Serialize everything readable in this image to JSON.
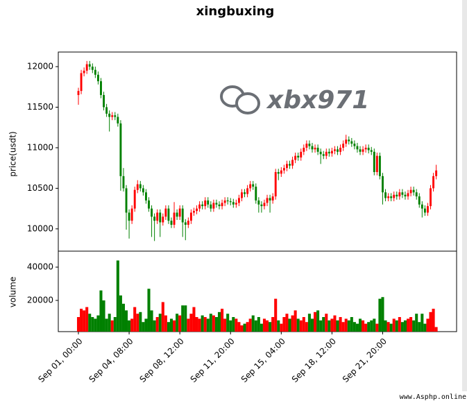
{
  "chart_data": {
    "type": "candlestick",
    "title": "xingbuxing",
    "ylabel": "price(usdt)",
    "volume_label": "volume",
    "annotations": [
      "xbx971",
      "www.Asphp.online"
    ],
    "up_color": "#ff0000",
    "down_color": "#008000",
    "categories": [
      "Sep 01, 00:00",
      null,
      null,
      null,
      null,
      null,
      null,
      null,
      null,
      null,
      null,
      null,
      null,
      null,
      null,
      null,
      null,
      null,
      "Sep 04, 08:00",
      null,
      null,
      null,
      null,
      null,
      null,
      null,
      null,
      null,
      null,
      null,
      null,
      null,
      null,
      null,
      null,
      null,
      "Sep 08, 12:00",
      null,
      null,
      null,
      null,
      null,
      null,
      null,
      null,
      null,
      null,
      null,
      null,
      null,
      null,
      null,
      null,
      null,
      "Sep 11, 20:00",
      null,
      null,
      null,
      null,
      null,
      null,
      null,
      null,
      null,
      null,
      null,
      null,
      null,
      null,
      null,
      null,
      null,
      "Sep 15, 04:00",
      null,
      null,
      null,
      null,
      null,
      null,
      null,
      null,
      null,
      null,
      null,
      null,
      null,
      null,
      null,
      null,
      null,
      "Sep 18, 12:00",
      null,
      null,
      null,
      null,
      null,
      null,
      null,
      null,
      null,
      null,
      null,
      null,
      null,
      null,
      null,
      null,
      null,
      "Sep 21, 20:00",
      null,
      null,
      null,
      null,
      null,
      null,
      null,
      null,
      null,
      null,
      null,
      null,
      null,
      null,
      null,
      null,
      null,
      null,
      null
    ],
    "open": [
      11650,
      11700,
      11920,
      11950,
      12030,
      12000,
      11960,
      11900,
      11820,
      11650,
      11500,
      11420,
      11380,
      11400,
      11380,
      11300,
      10650,
      10500,
      10200,
      10100,
      10250,
      10480,
      10550,
      10500,
      10450,
      10350,
      10250,
      10150,
      10100,
      10200,
      10080,
      10150,
      10250,
      10100,
      10050,
      10200,
      10150,
      10250,
      10080,
      10050,
      10100,
      10200,
      10220,
      10250,
      10300,
      10280,
      10350,
      10300,
      10250,
      10320,
      10300,
      10280,
      10320,
      10350,
      10340,
      10330,
      10300,
      10320,
      10380,
      10450,
      10430,
      10500,
      10550,
      10520,
      10350,
      10300,
      10280,
      10320,
      10380,
      10350,
      10400,
      10700,
      10680,
      10720,
      10750,
      10800,
      10780,
      10850,
      10900,
      10880,
      10950,
      11000,
      11050,
      11020,
      10980,
      11000,
      10950,
      10920,
      10900,
      10950,
      10930,
      10960,
      10980,
      10950,
      11000,
      11050,
      11100,
      11080,
      11050,
      11020,
      10980,
      10950,
      10980,
      11000,
      10970,
      10950,
      10700,
      10900,
      10650,
      10450,
      10380,
      10400,
      10380,
      10420,
      10400,
      10450,
      10420,
      10400,
      10440,
      10480,
      10450,
      10400,
      10300,
      10250,
      10200,
      10280,
      10500,
      10650
    ],
    "high": [
      11740,
      11960,
      11990,
      12070,
      12070,
      12040,
      12000,
      11940,
      11860,
      11690,
      11540,
      11460,
      11440,
      11440,
      11420,
      11340,
      10750,
      10540,
      10240,
      10290,
      10520,
      10600,
      10590,
      10540,
      10490,
      10390,
      10290,
      10190,
      10240,
      10240,
      10190,
      10290,
      10290,
      10140,
      10330,
      10240,
      10290,
      10290,
      10120,
      10140,
      10240,
      10260,
      10290,
      10340,
      10340,
      10390,
      10390,
      10340,
      10360,
      10360,
      10340,
      10360,
      10390,
      10390,
      10380,
      10370,
      10360,
      10420,
      10490,
      10490,
      10540,
      10590,
      10590,
      10560,
      10390,
      10340,
      10360,
      10420,
      10420,
      10440,
      10740,
      10740,
      10760,
      10790,
      10840,
      10840,
      10890,
      10940,
      10940,
      10990,
      11040,
      11090,
      11090,
      11060,
      11040,
      11040,
      10990,
      10960,
      10990,
      10990,
      11000,
      11020,
      11020,
      11040,
      11090,
      11160,
      11140,
      11120,
      11090,
      11060,
      11020,
      11020,
      11040,
      11040,
      11010,
      10990,
      10940,
      10940,
      10690,
      10490,
      10440,
      10440,
      10460,
      10460,
      10490,
      10490,
      10460,
      10480,
      10520,
      10520,
      10490,
      10440,
      10340,
      10290,
      10320,
      10540,
      10690,
      10790
    ],
    "low": [
      11530,
      11660,
      11880,
      11910,
      11960,
      11920,
      11860,
      11780,
      11610,
      11460,
      11380,
      11200,
      11340,
      11340,
      11260,
      10470,
      10460,
      9990,
      9880,
      10060,
      10210,
      10440,
      10460,
      10410,
      10310,
      10210,
      9900,
      9850,
      10060,
      9900,
      10040,
      10110,
      10060,
      10010,
      10010,
      10110,
      10110,
      9900,
      9860,
      10010,
      10060,
      10160,
      10180,
      10210,
      10240,
      10240,
      10260,
      10210,
      10210,
      10260,
      10240,
      10240,
      10280,
      10300,
      10290,
      10260,
      10260,
      10280,
      10340,
      10390,
      10390,
      10460,
      10480,
      10310,
      10200,
      10200,
      10240,
      10280,
      10200,
      10310,
      10360,
      10600,
      10640,
      10680,
      10710,
      10740,
      10740,
      10810,
      10840,
      10840,
      10910,
      10960,
      10980,
      10940,
      10940,
      10910,
      10800,
      10860,
      10860,
      10890,
      10890,
      10920,
      10910,
      10910,
      10960,
      11010,
      11040,
      11010,
      10980,
      10940,
      10910,
      10910,
      10940,
      10930,
      10910,
      10660,
      10660,
      10610,
      10300,
      10340,
      10340,
      10340,
      10340,
      10360,
      10360,
      10380,
      10360,
      10360,
      10400,
      10410,
      10360,
      10260,
      10140,
      10160,
      10160,
      10240,
      10460,
      10610
    ],
    "close": [
      11700,
      11920,
      11950,
      12030,
      12000,
      11960,
      11900,
      11820,
      11650,
      11500,
      11420,
      11380,
      11400,
      11380,
      11300,
      10650,
      10500,
      10200,
      10100,
      10250,
      10480,
      10550,
      10500,
      10450,
      10350,
      10250,
      10150,
      10100,
      10200,
      10080,
      10150,
      10250,
      10100,
      10050,
      10200,
      10150,
      10250,
      10080,
      10050,
      10100,
      10200,
      10220,
      10250,
      10300,
      10280,
      10350,
      10300,
      10250,
      10320,
      10300,
      10280,
      10320,
      10350,
      10340,
      10330,
      10300,
      10320,
      10380,
      10450,
      10430,
      10500,
      10550,
      10520,
      10350,
      10300,
      10280,
      10320,
      10380,
      10350,
      10400,
      10700,
      10680,
      10720,
      10750,
      10800,
      10780,
      10850,
      10900,
      10880,
      10950,
      11000,
      11050,
      11020,
      10980,
      11000,
      10950,
      10920,
      10900,
      10950,
      10930,
      10960,
      10980,
      10950,
      11000,
      11050,
      11100,
      11080,
      11050,
      11020,
      10980,
      10950,
      10980,
      11000,
      10970,
      10950,
      10700,
      10900,
      10650,
      10450,
      10380,
      10400,
      10380,
      10420,
      10400,
      10450,
      10420,
      10400,
      10440,
      10480,
      10450,
      10400,
      10300,
      10250,
      10200,
      10280,
      10500,
      10650,
      10720
    ],
    "volume": [
      10000,
      15000,
      14000,
      16000,
      12000,
      10000,
      9000,
      11000,
      26000,
      20000,
      9000,
      12000,
      8000,
      10000,
      44000,
      23000,
      18000,
      14000,
      8000,
      9000,
      16000,
      12000,
      13000,
      7000,
      9000,
      27000,
      14000,
      8000,
      10000,
      12000,
      19000,
      11000,
      7000,
      9000,
      8000,
      12000,
      11000,
      17000,
      17000,
      9000,
      12000,
      16000,
      10000,
      9000,
      11000,
      10000,
      9000,
      12000,
      11000,
      10000,
      13000,
      15000,
      9000,
      12000,
      8000,
      10000,
      9000,
      7000,
      5000,
      6000,
      7000,
      9000,
      11000,
      8000,
      10000,
      6000,
      9000,
      8000,
      7000,
      10000,
      21000,
      8000,
      6000,
      10000,
      12000,
      9000,
      11000,
      14000,
      9000,
      8000,
      10000,
      7000,
      12000,
      9000,
      13000,
      14000,
      8000,
      10000,
      12000,
      8000,
      9000,
      11000,
      8000,
      10000,
      7000,
      9000,
      8000,
      10000,
      7000,
      6000,
      9000,
      8000,
      6000,
      7000,
      8000,
      9000,
      6000,
      21000,
      22000,
      8000,
      7000,
      6000,
      9000,
      8000,
      10000,
      7000,
      8000,
      9000,
      10000,
      8000,
      12000,
      7000,
      12000,
      6000,
      9000,
      13000,
      15000,
      4000
    ],
    "ylim": [
      9725,
      12180
    ],
    "yticks": [
      10000,
      10500,
      11000,
      11500,
      12000
    ],
    "volume_ylim": [
      1250,
      49600
    ],
    "volume_yticks": [
      20000,
      40000
    ]
  }
}
